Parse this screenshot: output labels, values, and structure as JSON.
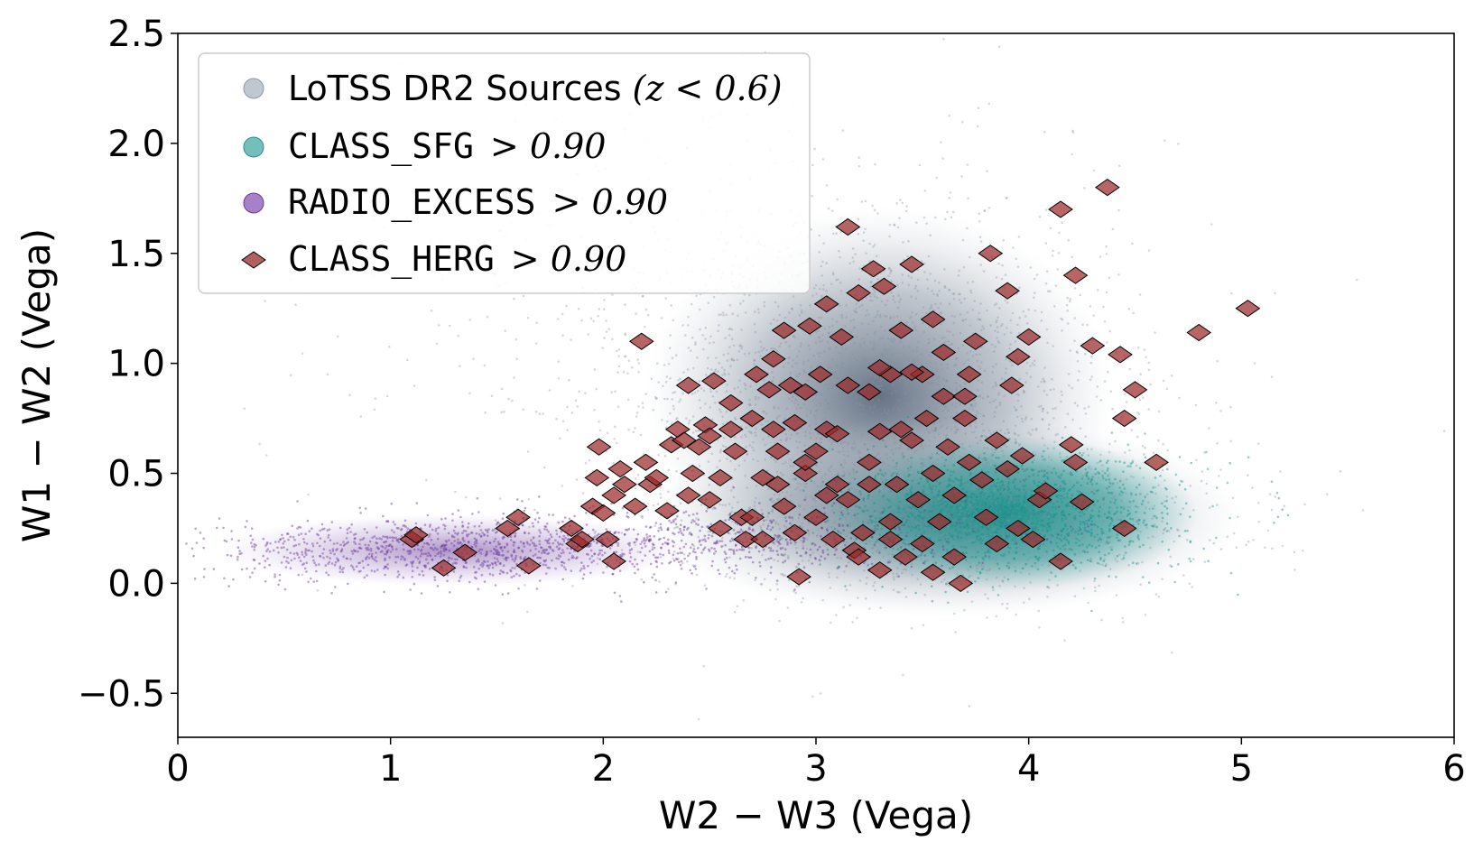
{
  "chart_data": {
    "type": "scatter",
    "xlabel": "W2 − W3 (Vega)",
    "ylabel": "W1 − W2 (Vega)",
    "xlim": [
      0,
      6
    ],
    "ylim": [
      -0.7,
      2.5
    ],
    "xticks": [
      "0",
      "1",
      "2",
      "3",
      "4",
      "5",
      "6"
    ],
    "yticks": [
      "−0.5",
      "0.0",
      "0.5",
      "1.0",
      "1.5",
      "2.0",
      "2.5"
    ],
    "legend_position": "upper-left",
    "legend": [
      {
        "name": "LoTSS DR2 Sources",
        "cond": "(z < 0.6)",
        "marker": "circle",
        "color": "#a9b4bf"
      },
      {
        "name": "CLASS_SFG",
        "cond": "> 0.90",
        "marker": "circle",
        "color": "#45aaa6"
      },
      {
        "name": "RADIO_EXCESS",
        "cond": "> 0.90",
        "marker": "circle",
        "color": "#8a55b8"
      },
      {
        "name": "CLASS_HERG",
        "cond": "> 0.90",
        "marker": "diamond",
        "color": "#9b2a2a"
      }
    ],
    "series": [
      {
        "name": "LoTSS DR2 Sources (z < 0.6)",
        "description": "dense background cloud",
        "density_clusters": [
          {
            "x": 3.3,
            "y": 0.85,
            "sx": 0.55,
            "sy": 0.35,
            "weight": 0.45
          },
          {
            "x": 3.6,
            "y": 0.3,
            "sx": 0.65,
            "sy": 0.18,
            "weight": 0.35
          },
          {
            "x": 2.8,
            "y": 1.2,
            "sx": 0.9,
            "sy": 0.5,
            "weight": 0.2
          }
        ]
      },
      {
        "name": "CLASS_SFG > 0.90",
        "density_clusters": [
          {
            "x": 3.9,
            "y": 0.32,
            "sx": 0.4,
            "sy": 0.13,
            "weight": 1.0
          }
        ]
      },
      {
        "name": "RADIO_EXCESS > 0.90",
        "density_clusters": [
          {
            "x": 1.2,
            "y": 0.15,
            "sx": 0.55,
            "sy": 0.07,
            "weight": 0.6
          },
          {
            "x": 2.5,
            "y": 0.2,
            "sx": 0.6,
            "sy": 0.08,
            "weight": 0.4
          }
        ]
      },
      {
        "name": "CLASS_HERG > 0.90",
        "points": [
          [
            1.1,
            0.2
          ],
          [
            1.12,
            0.22
          ],
          [
            1.25,
            0.07
          ],
          [
            1.35,
            0.14
          ],
          [
            1.55,
            0.25
          ],
          [
            1.6,
            0.3
          ],
          [
            1.65,
            0.08
          ],
          [
            1.85,
            0.25
          ],
          [
            1.88,
            0.18
          ],
          [
            1.9,
            0.2
          ],
          [
            1.95,
            0.35
          ],
          [
            1.97,
            0.48
          ],
          [
            1.98,
            0.62
          ],
          [
            2.0,
            0.32
          ],
          [
            2.02,
            0.2
          ],
          [
            2.05,
            0.1
          ],
          [
            2.05,
            0.4
          ],
          [
            2.08,
            0.52
          ],
          [
            2.1,
            0.45
          ],
          [
            2.15,
            0.35
          ],
          [
            2.18,
            1.1
          ],
          [
            2.2,
            0.55
          ],
          [
            2.22,
            0.45
          ],
          [
            2.25,
            0.48
          ],
          [
            2.3,
            0.33
          ],
          [
            2.32,
            0.63
          ],
          [
            2.35,
            0.7
          ],
          [
            2.38,
            0.65
          ],
          [
            2.4,
            0.9
          ],
          [
            2.4,
            0.4
          ],
          [
            2.42,
            0.5
          ],
          [
            2.45,
            0.62
          ],
          [
            2.48,
            0.72
          ],
          [
            2.5,
            0.38
          ],
          [
            2.5,
            0.67
          ],
          [
            2.52,
            0.92
          ],
          [
            2.55,
            0.48
          ],
          [
            2.55,
            0.25
          ],
          [
            2.6,
            0.7
          ],
          [
            2.6,
            0.82
          ],
          [
            2.62,
            0.6
          ],
          [
            2.65,
            0.3
          ],
          [
            2.67,
            0.2
          ],
          [
            2.7,
            0.3
          ],
          [
            2.7,
            0.75
          ],
          [
            2.72,
            0.95
          ],
          [
            2.75,
            0.2
          ],
          [
            2.75,
            0.48
          ],
          [
            2.78,
            0.88
          ],
          [
            2.8,
            0.7
          ],
          [
            2.8,
            1.02
          ],
          [
            2.82,
            0.6
          ],
          [
            2.82,
            0.45
          ],
          [
            2.85,
            1.15
          ],
          [
            2.85,
            0.35
          ],
          [
            2.88,
            0.9
          ],
          [
            2.9,
            0.73
          ],
          [
            2.9,
            0.23
          ],
          [
            2.92,
            0.03
          ],
          [
            2.95,
            0.5
          ],
          [
            2.95,
            0.55
          ],
          [
            2.97,
            1.17
          ],
          [
            3.0,
            0.3
          ],
          [
            3.0,
            0.6
          ],
          [
            3.02,
            0.95
          ],
          [
            3.05,
            1.27
          ],
          [
            3.05,
            0.7
          ],
          [
            3.08,
            0.2
          ],
          [
            3.1,
            0.68
          ],
          [
            3.1,
            0.45
          ],
          [
            3.12,
            1.12
          ],
          [
            3.15,
            0.38
          ],
          [
            3.15,
            0.9
          ],
          [
            3.15,
            1.62
          ],
          [
            3.18,
            0.15
          ],
          [
            3.2,
            1.32
          ],
          [
            3.22,
            0.23
          ],
          [
            3.25,
            0.55
          ],
          [
            3.25,
            0.87
          ],
          [
            3.27,
            1.43
          ],
          [
            3.3,
            0.06
          ],
          [
            3.3,
            0.69
          ],
          [
            3.32,
            1.35
          ],
          [
            3.35,
            0.95
          ],
          [
            3.35,
            0.28
          ],
          [
            3.38,
            0.45
          ],
          [
            3.4,
            1.15
          ],
          [
            3.4,
            0.7
          ],
          [
            3.42,
            0.12
          ],
          [
            3.45,
            1.45
          ],
          [
            3.45,
            0.65
          ],
          [
            3.48,
            0.38
          ],
          [
            3.5,
            0.95
          ],
          [
            3.5,
            0.18
          ],
          [
            3.52,
            0.75
          ],
          [
            3.55,
            1.2
          ],
          [
            3.55,
            0.5
          ],
          [
            3.58,
            0.28
          ],
          [
            3.6,
            1.05
          ],
          [
            3.6,
            0.85
          ],
          [
            3.62,
            0.62
          ],
          [
            3.65,
            0.4
          ],
          [
            3.65,
            0.12
          ],
          [
            3.68,
            0.0
          ],
          [
            3.7,
            0.75
          ],
          [
            3.72,
            0.55
          ],
          [
            3.75,
            1.1
          ],
          [
            3.78,
            0.47
          ],
          [
            3.8,
            0.3
          ],
          [
            3.82,
            1.5
          ],
          [
            3.85,
            0.65
          ],
          [
            3.85,
            0.18
          ],
          [
            3.9,
            1.33
          ],
          [
            3.92,
            0.9
          ],
          [
            3.95,
            1.03
          ],
          [
            3.95,
            0.25
          ],
          [
            3.97,
            0.58
          ],
          [
            4.0,
            1.12
          ],
          [
            4.02,
            0.2
          ],
          [
            4.05,
            0.38
          ],
          [
            4.08,
            0.42
          ],
          [
            4.15,
            1.7
          ],
          [
            4.15,
            0.1
          ],
          [
            4.2,
            0.63
          ],
          [
            4.22,
            1.4
          ],
          [
            4.22,
            0.55
          ],
          [
            4.25,
            0.37
          ],
          [
            4.3,
            1.08
          ],
          [
            4.37,
            1.8
          ],
          [
            4.43,
            1.04
          ],
          [
            4.45,
            0.75
          ],
          [
            4.45,
            0.25
          ],
          [
            4.5,
            0.88
          ],
          [
            4.6,
            0.55
          ],
          [
            4.8,
            1.14
          ],
          [
            5.03,
            1.25
          ],
          [
            3.7,
            0.85
          ],
          [
            3.72,
            0.95
          ],
          [
            3.3,
            0.98
          ],
          [
            3.45,
            0.96
          ],
          [
            3.2,
            0.12
          ],
          [
            3.35,
            0.2
          ],
          [
            3.55,
            0.05
          ],
          [
            3.9,
            0.52
          ],
          [
            2.95,
            0.87
          ],
          [
            3.05,
            0.4
          ],
          [
            3.25,
            0.45
          ]
        ]
      }
    ]
  }
}
